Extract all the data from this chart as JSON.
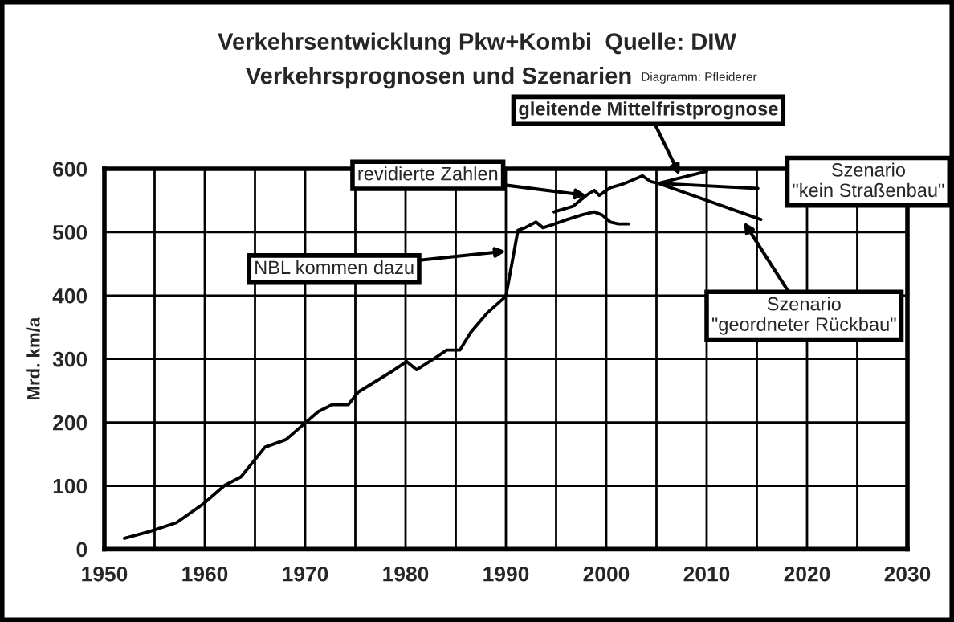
{
  "chart_data": {
    "type": "line",
    "title": "Verkehrsentwicklung Pkw+Kombi  Quelle: DIW",
    "subtitle": "Verkehrsprognosen und Szenarien",
    "ylabel": "Mrd. km/a",
    "series": [
      {
        "color": "#000000",
        "x": [
          1952,
          1954.5,
          1957.2,
          1959.9,
          1962,
          1963.6,
          1966,
          1968.1,
          1970,
          1971.3,
          1972.7,
          1974.3,
          1975.3,
          1978.5,
          1980.1,
          1981.1,
          1982.8,
          1984.1,
          1985.4,
          1986.5,
          1988.1,
          1990,
          1991.2,
          1991.9,
          1993,
          1993.7,
          1994.5,
          1996.1,
          1997.7,
          1998.8,
          1999.6,
          2000.4,
          2001.2,
          2002.2
        ],
        "values": [
          17,
          28,
          42,
          72,
          101,
          114,
          161,
          173,
          199,
          217,
          228,
          228,
          248,
          279,
          296,
          283,
          300,
          314,
          314,
          342,
          372,
          399,
          503,
          507,
          516,
          507,
          511,
          520,
          528,
          532,
          527,
          516,
          513,
          513
        ]
      },
      {
        "color": "#000000",
        "x": [
          1994.8,
          1996.7,
          1998,
          1998.8,
          1999.3,
          2000.4,
          2001.5,
          2002.3,
          2003.6,
          2004.4,
          2005.2,
          2010
        ],
        "values": [
          532,
          541,
          558,
          566,
          558,
          570,
          575,
          580,
          589,
          580,
          577,
          596
        ]
      },
      {
        "color": "#000000",
        "x": [
          2015.1,
          2005.2,
          2015.4
        ],
        "values": [
          569,
          577,
          520
        ]
      }
    ],
    "xlim": [
      1950,
      2030
    ],
    "ylim": [
      0,
      600
    ],
    "xticks": [
      1950,
      {
        "value": 1955,
        "label": null
      },
      1960,
      {
        "value": 1965,
        "label": null
      },
      1970,
      {
        "value": 1975,
        "label": null
      },
      1980,
      {
        "value": 1985,
        "label": null
      },
      1990,
      {
        "value": 1995,
        "label": null
      },
      2000,
      {
        "value": 2005,
        "label": null
      },
      2010,
      {
        "value": 2015,
        "label": null
      },
      2020,
      {
        "value": 2025,
        "label": null
      },
      2030
    ],
    "yticks": [
      0,
      100,
      200,
      300,
      400,
      500,
      600
    ],
    "grid": true,
    "line_style": "solid",
    "marker": "none",
    "annotations": [
      "Diagramm: Pfleiderer",
      {
        "text": "NBL kommen dazu",
        "x": 1990,
        "y": 470
      },
      {
        "text": "revidierte Zahlen",
        "x": 1998,
        "y": 558
      },
      {
        "text": "gleitende Mittelfristprognose",
        "x": 2007.3,
        "y": 590
      },
      {
        "text": "Szenario\n\"kein Straßenbau\"",
        "x": 2015,
        "y": 569
      },
      {
        "text": "Szenario\n\"geordneter Rückbau\"",
        "x": 2013.7,
        "y": 516
      }
    ]
  }
}
